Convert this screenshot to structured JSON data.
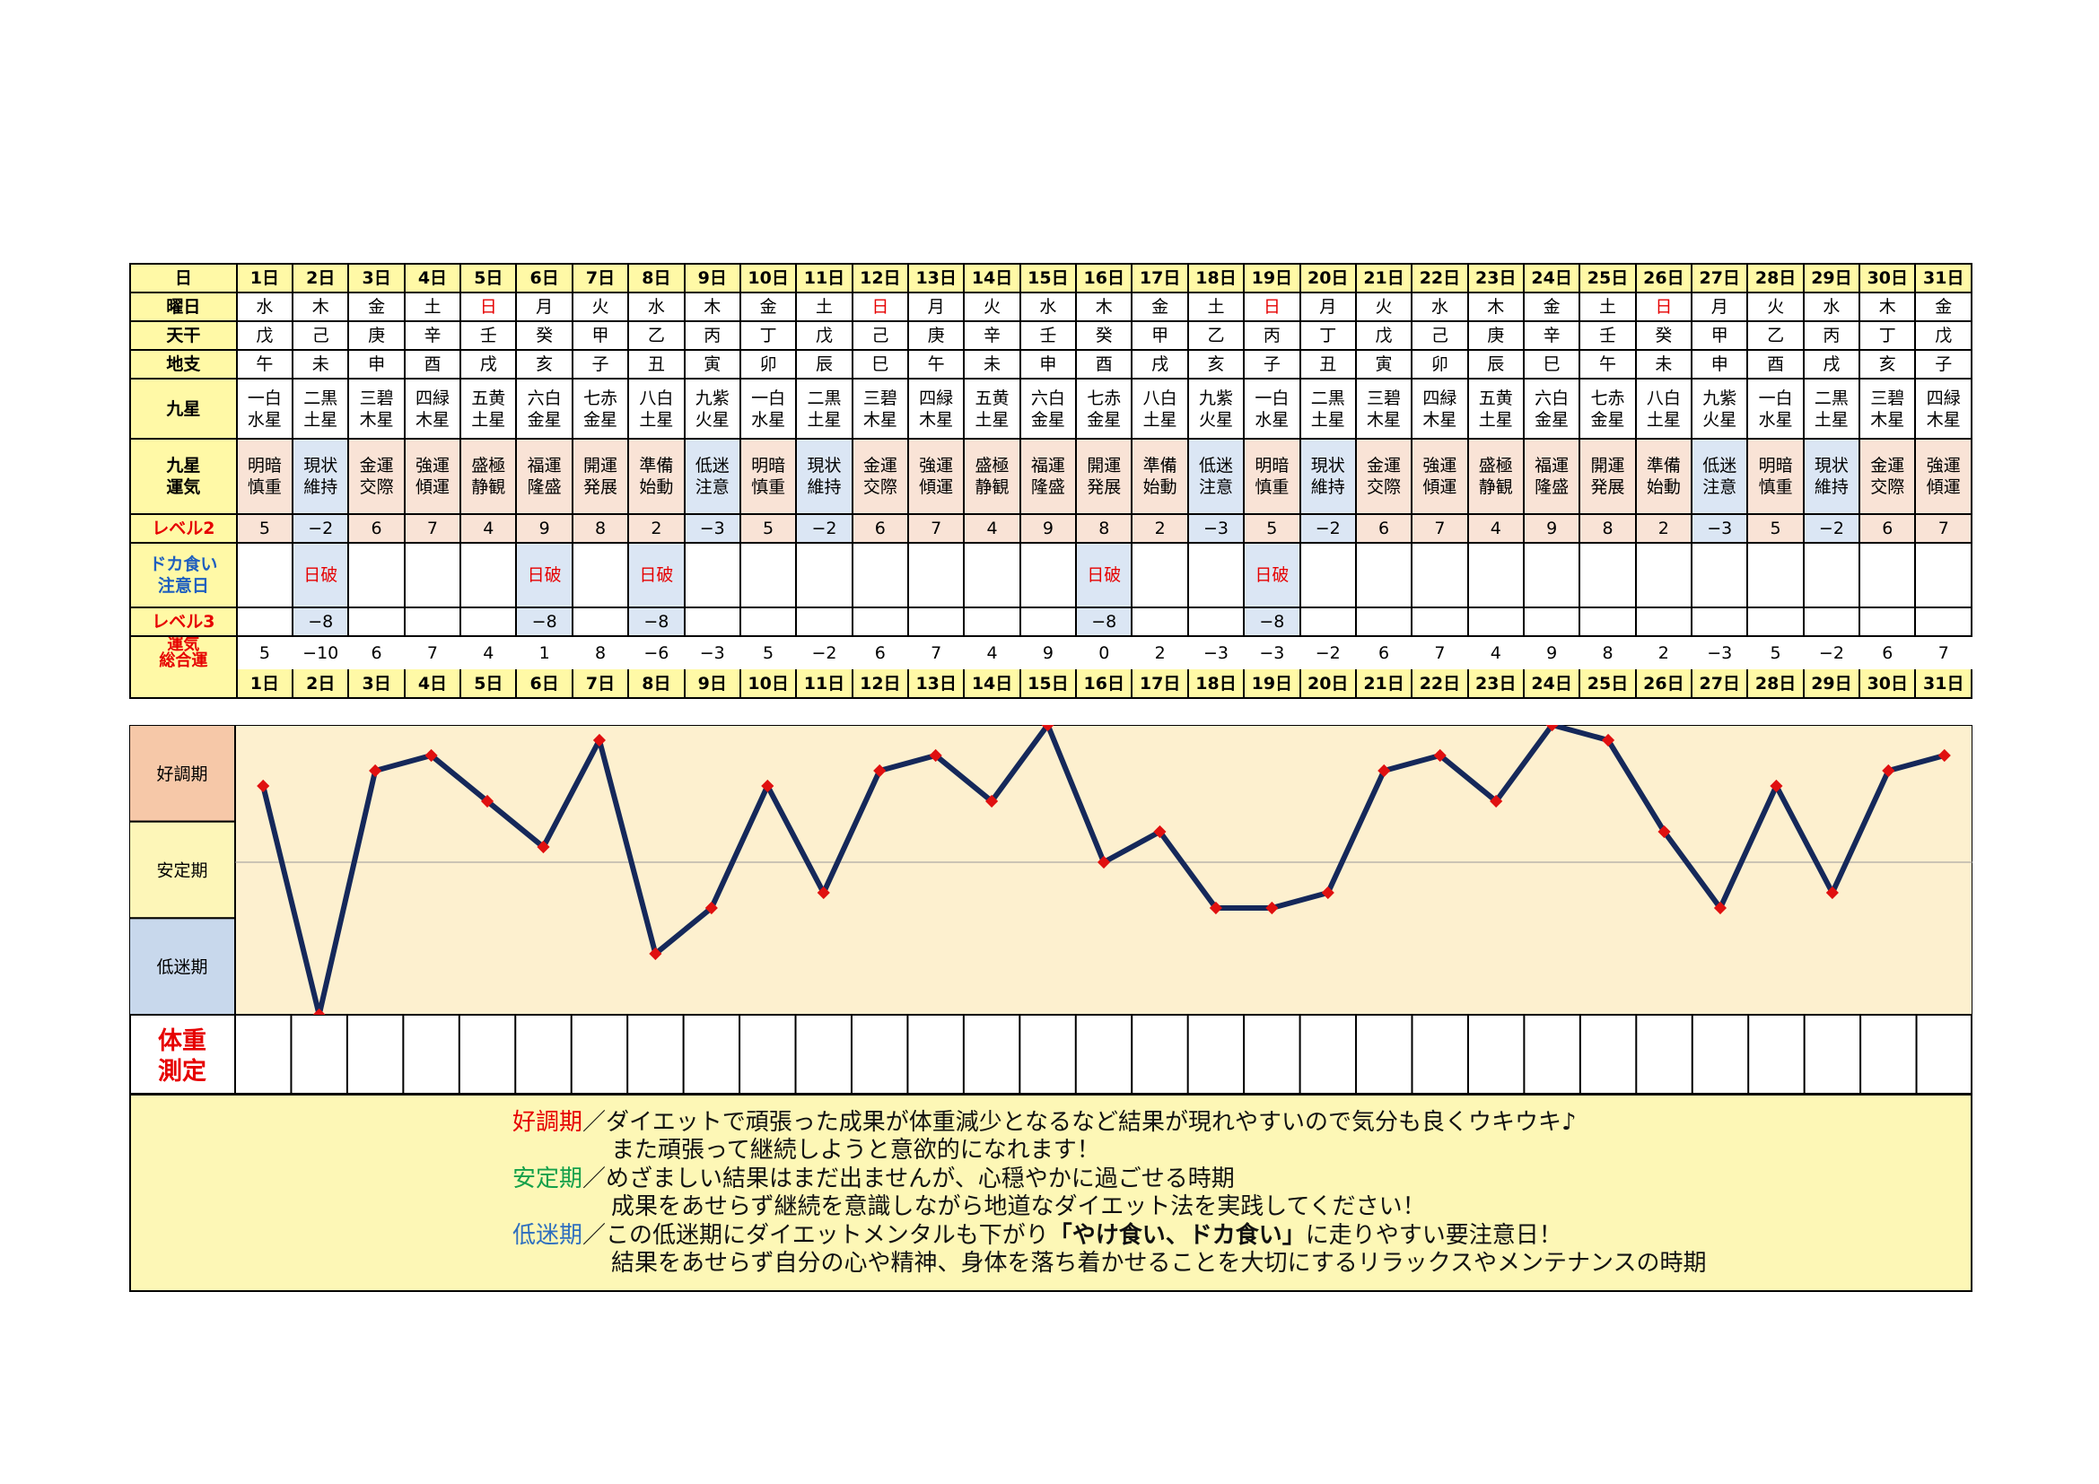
{
  "labels": {
    "day": "日",
    "weekday": "曜日",
    "tenkan": "天干",
    "chishi": "地支",
    "kyusei": "九星",
    "kyusei_unki": [
      "九星",
      "運気"
    ],
    "level2": "レベル2",
    "doka": [
      "ドカ食い",
      "注意日"
    ],
    "level3": "レベル3",
    "sogo": [
      "運気",
      "総合運"
    ],
    "koucho": "好調期",
    "antei": "安定期",
    "teimei": "低迷期",
    "weight": [
      "体重",
      "測定"
    ]
  },
  "days": [
    "1日",
    "2日",
    "3日",
    "4日",
    "5日",
    "6日",
    "7日",
    "8日",
    "9日",
    "10日",
    "11日",
    "12日",
    "13日",
    "14日",
    "15日",
    "16日",
    "17日",
    "18日",
    "19日",
    "20日",
    "21日",
    "22日",
    "23日",
    "24日",
    "25日",
    "26日",
    "27日",
    "28日",
    "29日",
    "30日",
    "31日"
  ],
  "weekdays": [
    "水",
    "木",
    "金",
    "土",
    "日",
    "月",
    "火",
    "水",
    "木",
    "金",
    "土",
    "日",
    "月",
    "火",
    "水",
    "木",
    "金",
    "土",
    "日",
    "月",
    "火",
    "水",
    "木",
    "金",
    "土",
    "日",
    "月",
    "火",
    "水",
    "木",
    "金"
  ],
  "tenkan": [
    "戊",
    "己",
    "庚",
    "辛",
    "壬",
    "癸",
    "甲",
    "乙",
    "丙",
    "丁",
    "戊",
    "己",
    "庚",
    "辛",
    "壬",
    "癸",
    "甲",
    "乙",
    "丙",
    "丁",
    "戊",
    "己",
    "庚",
    "辛",
    "壬",
    "癸",
    "甲",
    "乙",
    "丙",
    "丁",
    "戊"
  ],
  "chishi": [
    "午",
    "未",
    "申",
    "酉",
    "戌",
    "亥",
    "子",
    "丑",
    "寅",
    "卯",
    "辰",
    "巳",
    "午",
    "未",
    "申",
    "酉",
    "戌",
    "亥",
    "子",
    "丑",
    "寅",
    "卯",
    "辰",
    "巳",
    "午",
    "未",
    "申",
    "酉",
    "戌",
    "亥",
    "子"
  ],
  "kyusei": [
    [
      "一白",
      "水星"
    ],
    [
      "二黒",
      "土星"
    ],
    [
      "三碧",
      "木星"
    ],
    [
      "四緑",
      "木星"
    ],
    [
      "五黄",
      "土星"
    ],
    [
      "六白",
      "金星"
    ],
    [
      "七赤",
      "金星"
    ],
    [
      "八白",
      "土星"
    ],
    [
      "九紫",
      "火星"
    ],
    [
      "一白",
      "水星"
    ],
    [
      "二黒",
      "土星"
    ],
    [
      "三碧",
      "木星"
    ],
    [
      "四緑",
      "木星"
    ],
    [
      "五黄",
      "土星"
    ],
    [
      "六白",
      "金星"
    ],
    [
      "七赤",
      "金星"
    ],
    [
      "八白",
      "土星"
    ],
    [
      "九紫",
      "火星"
    ],
    [
      "一白",
      "水星"
    ],
    [
      "二黒",
      "土星"
    ],
    [
      "三碧",
      "木星"
    ],
    [
      "四緑",
      "木星"
    ],
    [
      "五黄",
      "土星"
    ],
    [
      "六白",
      "金星"
    ],
    [
      "七赤",
      "金星"
    ],
    [
      "八白",
      "土星"
    ],
    [
      "九紫",
      "火星"
    ],
    [
      "一白",
      "水星"
    ],
    [
      "二黒",
      "土星"
    ],
    [
      "三碧",
      "木星"
    ],
    [
      "四緑",
      "木星"
    ]
  ],
  "unki": [
    [
      "明暗",
      "慎重"
    ],
    [
      "現状",
      "維持"
    ],
    [
      "金運",
      "交際"
    ],
    [
      "強運",
      "傾運"
    ],
    [
      "盛極",
      "静観"
    ],
    [
      "福運",
      "隆盛"
    ],
    [
      "開運",
      "発展"
    ],
    [
      "準備",
      "始動"
    ],
    [
      "低迷",
      "注意"
    ],
    [
      "明暗",
      "慎重"
    ],
    [
      "現状",
      "維持"
    ],
    [
      "金運",
      "交際"
    ],
    [
      "強運",
      "傾運"
    ],
    [
      "盛極",
      "静観"
    ],
    [
      "福運",
      "隆盛"
    ],
    [
      "開運",
      "発展"
    ],
    [
      "準備",
      "始動"
    ],
    [
      "低迷",
      "注意"
    ],
    [
      "明暗",
      "慎重"
    ],
    [
      "現状",
      "維持"
    ],
    [
      "金運",
      "交際"
    ],
    [
      "強運",
      "傾運"
    ],
    [
      "盛極",
      "静観"
    ],
    [
      "福運",
      "隆盛"
    ],
    [
      "開運",
      "発展"
    ],
    [
      "準備",
      "始動"
    ],
    [
      "低迷",
      "注意"
    ],
    [
      "明暗",
      "慎重"
    ],
    [
      "現状",
      "維持"
    ],
    [
      "金運",
      "交際"
    ],
    [
      "強運",
      "傾運"
    ]
  ],
  "level2": [
    "5",
    "−2",
    "6",
    "7",
    "4",
    "9",
    "8",
    "2",
    "−3",
    "5",
    "−2",
    "6",
    "7",
    "4",
    "9",
    "8",
    "2",
    "−3",
    "5",
    "−2",
    "6",
    "7",
    "4",
    "9",
    "8",
    "2",
    "−3",
    "5",
    "−2",
    "6",
    "7"
  ],
  "doka": [
    "",
    "日破",
    "",
    "",
    "",
    "日破",
    "",
    "日破",
    "",
    "",
    "",
    "",
    "",
    "",
    "",
    "日破",
    "",
    "",
    "日破",
    "",
    "",
    "",
    "",
    "",
    "",
    "",
    "",
    "",
    "",
    "",
    ""
  ],
  "level3": [
    "",
    "−8",
    "",
    "",
    "",
    "−8",
    "",
    "−8",
    "",
    "",
    "",
    "",
    "",
    "",
    "",
    "−8",
    "",
    "",
    "−8",
    "",
    "",
    "",
    "",
    "",
    "",
    "",
    "",
    "",
    "",
    "",
    ""
  ],
  "sogo_text": [
    "5",
    "−10",
    "6",
    "7",
    "4",
    "1",
    "8",
    "−6",
    "−3",
    "5",
    "−2",
    "6",
    "7",
    "4",
    "9",
    "0",
    "2",
    "−3",
    "−3",
    "−2",
    "6",
    "7",
    "4",
    "9",
    "8",
    "2",
    "−3",
    "5",
    "−2",
    "6",
    "7"
  ],
  "chart_data": {
    "type": "line",
    "x": [
      "1日",
      "2日",
      "3日",
      "4日",
      "5日",
      "6日",
      "7日",
      "8日",
      "9日",
      "10日",
      "11日",
      "12日",
      "13日",
      "14日",
      "15日",
      "16日",
      "17日",
      "18日",
      "19日",
      "20日",
      "21日",
      "22日",
      "23日",
      "24日",
      "25日",
      "26日",
      "27日",
      "28日",
      "29日",
      "30日",
      "31日"
    ],
    "series": [
      {
        "values": [
          5,
          -10,
          6,
          7,
          4,
          1,
          8,
          -6,
          -3,
          5,
          -2,
          6,
          7,
          4,
          9,
          0,
          2,
          -3,
          -3,
          -2,
          6,
          7,
          4,
          9,
          8,
          2,
          -3,
          5,
          -2,
          6,
          7
        ]
      }
    ],
    "ylim": [
      -10,
      9
    ],
    "bands": [
      "好調期",
      "安定期",
      "低迷期"
    ],
    "colors": {
      "line": "#15285a",
      "marker": "#e01010",
      "bg": "#fdf0cf",
      "band_koucho": "#f6c8a8",
      "band_antei": "#fdf6b8",
      "band_teimei": "#c8d8ec"
    }
  },
  "legend": {
    "l1_head": "好調期",
    "l1": "／ダイエットで頑張った成果が体重減少となるなど結果が現れやすいので気分も良くウキウキ♪",
    "l2": "また頑張って継続しようと意欲的になれます！",
    "l3_head": "安定期",
    "l3": "／めざましい結果はまだ出ませんが、心穏やかに過ごせる時期",
    "l4": "成果をあせらず継続を意識しながら地道なダイエット法を実践してください！",
    "l5_head": "低迷期",
    "l5a": "／この低迷期にダイエットメンタルも下がり",
    "l5b": "「やけ食い、ドカ食い」",
    "l5c": "に走りやすい要注意日！",
    "l6": "結果をあせらず自分の心や精神、身体を落ち着かせることを大切にするリラックスやメンテナンスの時期"
  }
}
